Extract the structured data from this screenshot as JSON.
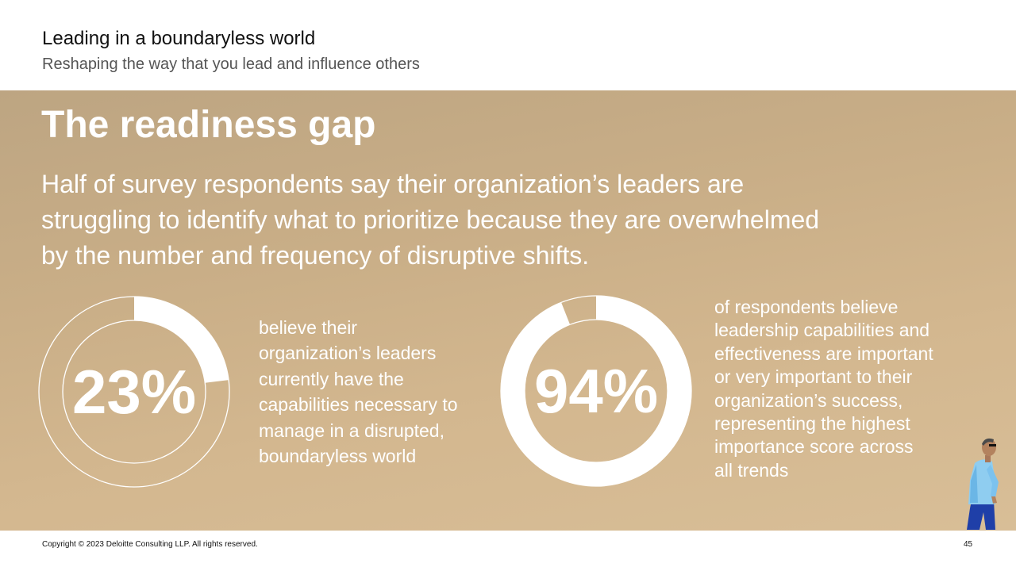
{
  "header": {
    "title": "Leading in a boundaryless world",
    "subtitle": "Reshaping the way that you lead and influence others"
  },
  "banner": {
    "title": "The readiness gap",
    "lead_lines": [
      "Half of survey respondents say their organization’s leaders are",
      "struggling to identify what to prioritize because they are overwhelmed",
      "by the number and frequency of disruptive shifts."
    ]
  },
  "stats": [
    {
      "value": "23%",
      "percent": 23,
      "lines": [
        "believe their",
        "organization’s leaders",
        "currently have the",
        "capabilities necessary to",
        "manage in a disrupted,",
        "boundaryless world"
      ]
    },
    {
      "value": "94%",
      "percent": 94,
      "lines": [
        "of respondents believe",
        "leadership capabilities and",
        "effectiveness are important",
        "or very important to their",
        "organization’s success,",
        "representing the highest",
        "importance score across",
        "all trends"
      ]
    }
  ],
  "footer": {
    "copyright": "Copyright © 2023 Deloitte Consulting LLP. All rights reserved.",
    "page_number": "45"
  },
  "colors": {
    "banner_start": "#bda582",
    "banner_end": "#d8be97",
    "ring": "#ffffff"
  }
}
